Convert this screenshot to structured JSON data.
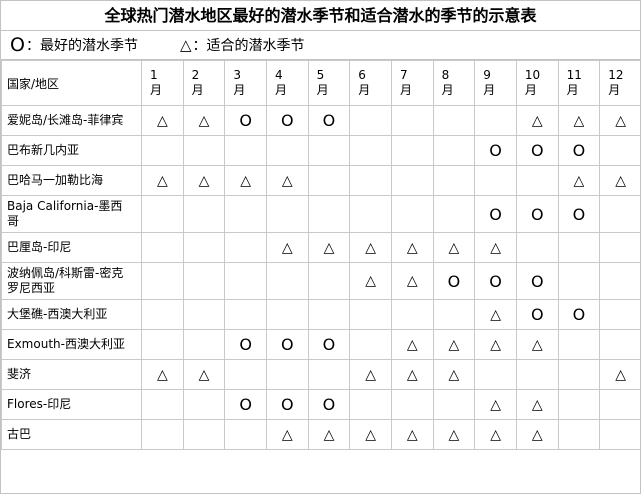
{
  "title": "全球热门潜水地区最好的潜水季节和适合潜水的季节的示意表",
  "legend": {
    "best_symbol": "O",
    "best_label": "：最好的潜水季节",
    "ok_symbol": "△",
    "ok_label": "：适合的潜水季节"
  },
  "table": {
    "corner_header": "国家/地区",
    "month_numbers": [
      "1",
      "2",
      "3",
      "4",
      "5",
      "6",
      "7",
      "8",
      "9",
      "10",
      "11",
      "12"
    ],
    "month_unit": "月",
    "symbols": {
      "best": "O",
      "suitable": "△"
    },
    "rows": [
      {
        "region": "爱妮岛/长滩岛-菲律宾",
        "cells": [
          "△",
          "△",
          "O",
          "O",
          "O",
          "",
          "",
          "",
          "",
          "△",
          "△",
          "△"
        ]
      },
      {
        "region": "巴布新几内亚",
        "cells": [
          "",
          "",
          "",
          "",
          "",
          "",
          "",
          "",
          "O",
          "O",
          "O",
          ""
        ]
      },
      {
        "region": "巴哈马一加勒比海",
        "cells": [
          "△",
          "△",
          "△",
          "△",
          "",
          "",
          "",
          "",
          "",
          "",
          "△",
          "△"
        ]
      },
      {
        "region": "Baja California-墨西哥",
        "cells": [
          "",
          "",
          "",
          "",
          "",
          "",
          "",
          "",
          "O",
          "O",
          "O",
          ""
        ]
      },
      {
        "region": "巴厘岛-印尼",
        "cells": [
          "",
          "",
          "",
          "△",
          "△",
          "△",
          "△",
          "△",
          "△",
          "",
          "",
          ""
        ]
      },
      {
        "region": "波纳佩岛/科斯雷-密克罗尼西亚",
        "cells": [
          "",
          "",
          "",
          "",
          "",
          "△",
          "△",
          "O",
          "O",
          "O",
          "",
          ""
        ]
      },
      {
        "region": "大堡礁-西澳大利亚",
        "cells": [
          "",
          "",
          "",
          "",
          "",
          "",
          "",
          "",
          "△",
          "O",
          "O",
          ""
        ]
      },
      {
        "region": "Exmouth-西澳大利亚",
        "cells": [
          "",
          "",
          "O",
          "O",
          "O",
          "",
          "△",
          "△",
          "△",
          "△",
          "",
          ""
        ]
      },
      {
        "region": "斐济",
        "cells": [
          "△",
          "△",
          "",
          "",
          "",
          "△",
          "△",
          "△",
          "",
          "",
          "",
          "△"
        ]
      },
      {
        "region": "Flores-印尼",
        "cells": [
          "",
          "",
          "O",
          "O",
          "O",
          "",
          "",
          "",
          "△",
          "△",
          "",
          ""
        ]
      },
      {
        "region": "古巴",
        "cells": [
          "",
          "",
          "",
          "△",
          "△",
          "△",
          "△",
          "△",
          "△",
          "△",
          "",
          ""
        ]
      }
    ]
  }
}
